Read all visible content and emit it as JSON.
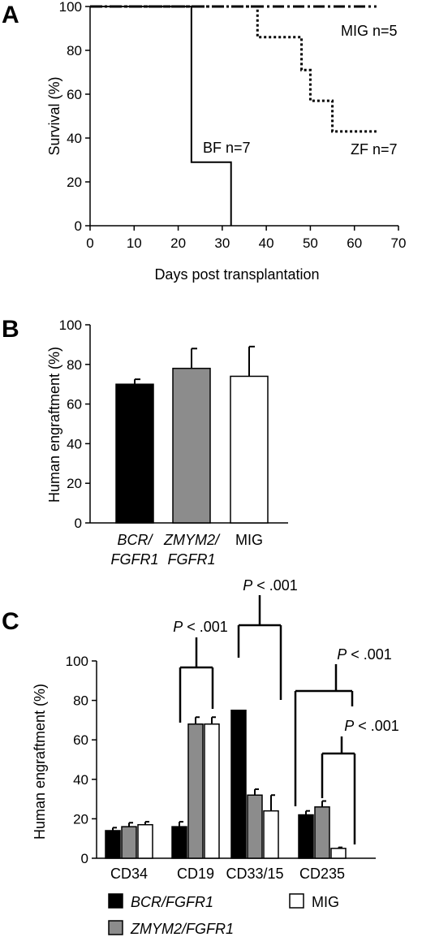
{
  "chart_data": [
    {
      "panel": "A",
      "type": "line",
      "xlabel": "Days post transplantation",
      "ylabel": "Survival (%)",
      "xlim": [
        0,
        70
      ],
      "ylim": [
        0,
        100
      ],
      "xticks": [
        0,
        10,
        20,
        30,
        40,
        50,
        60,
        70
      ],
      "yticks": [
        0,
        20,
        40,
        60,
        80,
        100
      ],
      "series": [
        {
          "name": "MIG n=5",
          "style": "dash-dot",
          "x": [
            0,
            65
          ],
          "y": [
            100,
            100
          ]
        },
        {
          "name": "ZF n=7",
          "style": "dotted",
          "x": [
            0,
            38,
            38,
            48,
            48,
            50,
            50,
            55,
            55,
            65
          ],
          "y": [
            100,
            100,
            86,
            86,
            71,
            71,
            57,
            57,
            43,
            43
          ]
        },
        {
          "name": "BF n=7",
          "style": "solid",
          "x": [
            0,
            23,
            23,
            32,
            32
          ],
          "y": [
            100,
            100,
            29,
            29,
            0
          ]
        }
      ]
    },
    {
      "panel": "B",
      "type": "bar",
      "ylabel": "Human engraftment (%)",
      "ylim": [
        0,
        100
      ],
      "yticks": [
        0,
        20,
        40,
        60,
        80,
        100
      ],
      "categories": [
        {
          "lines": [
            "BCR/",
            "FGFR1"
          ],
          "italic": true
        },
        {
          "lines": [
            "ZMYM2/",
            "FGFR1"
          ],
          "italic": true
        },
        {
          "lines": [
            "MIG"
          ],
          "italic": false
        }
      ],
      "values": [
        70,
        78,
        74
      ],
      "errors": [
        2.5,
        10,
        15
      ],
      "colors": [
        "#000000",
        "#8c8c8c",
        "#ffffff"
      ]
    },
    {
      "panel": "C",
      "type": "bar",
      "ylabel": "Human engraftment (%)",
      "ylim": [
        0,
        100
      ],
      "yticks": [
        0,
        20,
        40,
        60,
        80,
        100
      ],
      "categories": [
        "CD34",
        "CD19",
        "CD33/15",
        "CD235"
      ],
      "series": [
        {
          "name": "BCR/FGFR1",
          "color": "#000000",
          "values": [
            14,
            16,
            75,
            22
          ],
          "errors": [
            1.5,
            2.5,
            0,
            2
          ]
        },
        {
          "name": "ZMYM2/FGFR1",
          "color": "#8c8c8c",
          "values": [
            16,
            68,
            32,
            26
          ],
          "errors": [
            2,
            3.5,
            3,
            3
          ]
        },
        {
          "name": "MIG",
          "color": "#ffffff",
          "values": [
            17,
            68,
            24,
            5
          ],
          "errors": [
            1.5,
            3.5,
            8,
            0.5
          ]
        }
      ],
      "annotations": [
        {
          "label_p": "P",
          "label_rest": " < .001"
        },
        {
          "label_p": "P",
          "label_rest": " < .001"
        },
        {
          "label_p": "P",
          "label_rest": " < .001"
        },
        {
          "label_p": "P",
          "label_rest": " < .001"
        }
      ],
      "legend_position": "bottom"
    }
  ]
}
